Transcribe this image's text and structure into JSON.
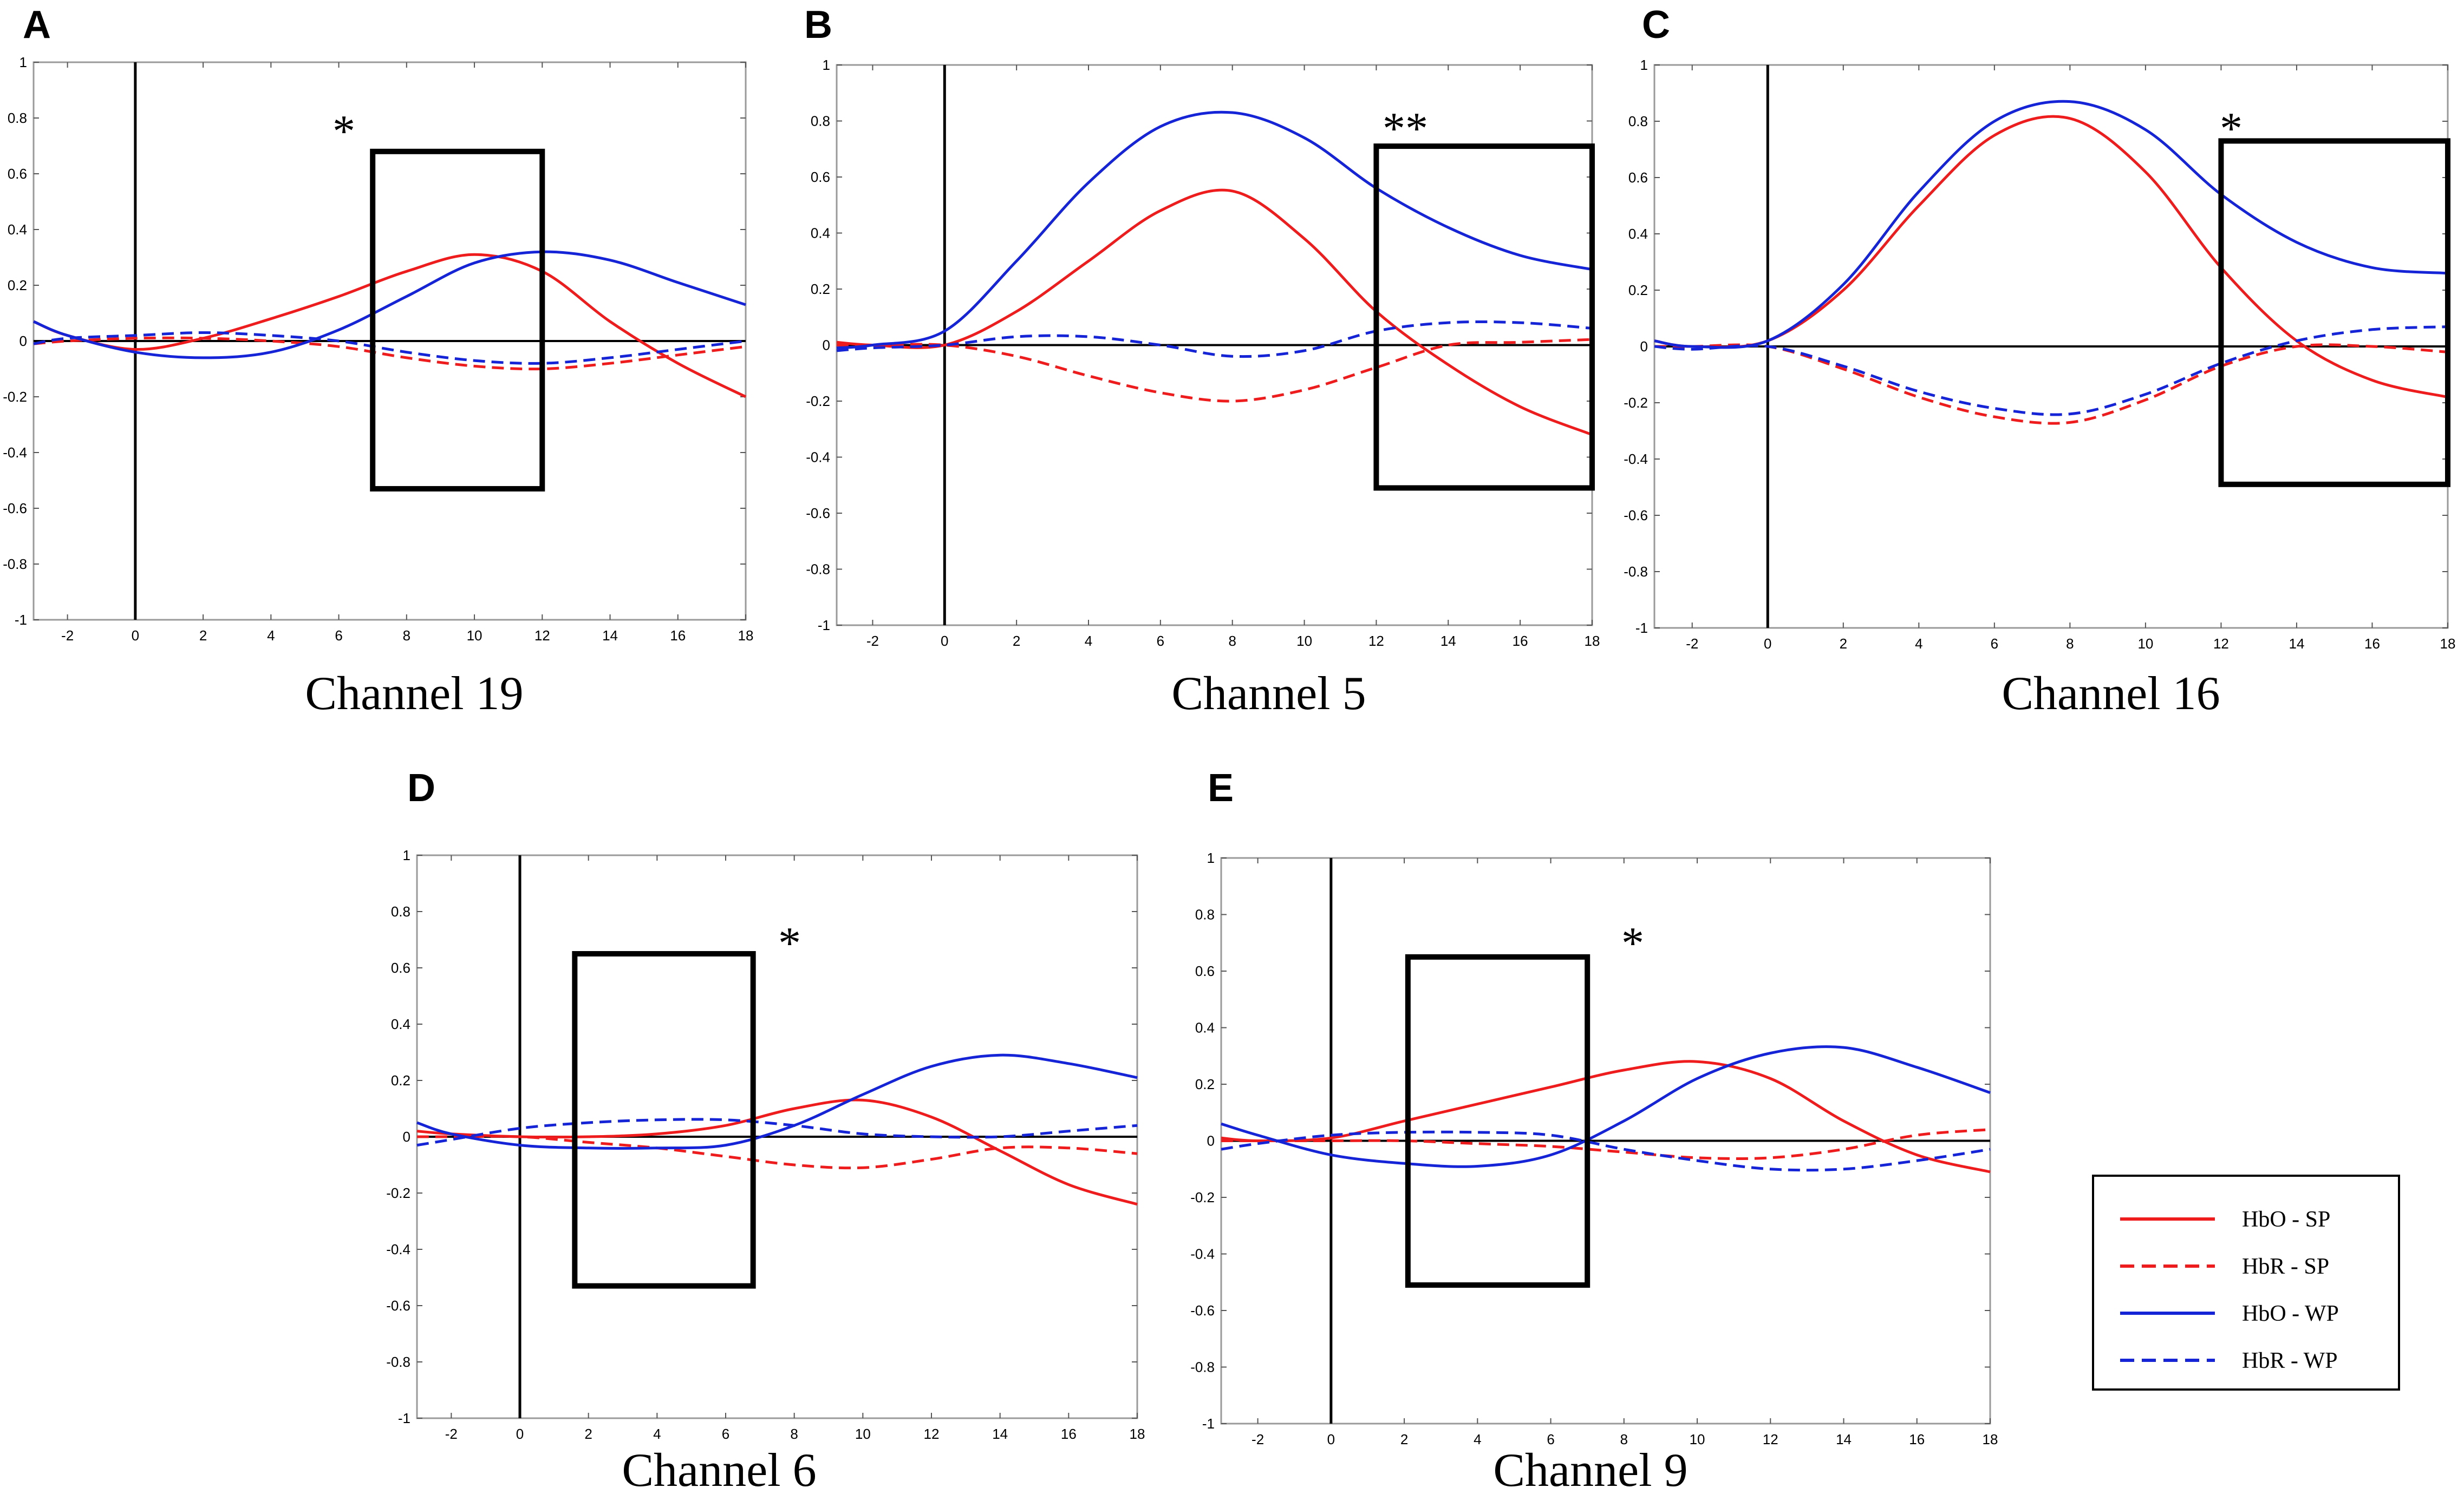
{
  "colors": {
    "red": "#ee1c1c",
    "blue": "#1424d6",
    "axis": "#000000"
  },
  "legend": [
    {
      "label": "HbO - SP",
      "color": "red",
      "dash": false
    },
    {
      "label": "HbR - SP",
      "color": "red",
      "dash": true
    },
    {
      "label": "HbO - WP",
      "color": "blue",
      "dash": false
    },
    {
      "label": "HbR - WP",
      "color": "blue",
      "dash": true
    }
  ],
  "chart_data": [
    {
      "panel": "A",
      "caption": "Channel 19",
      "type": "line",
      "significance": "*",
      "xlim": [
        -3,
        18
      ],
      "ylim": [
        -1,
        1
      ],
      "xticks": [
        -2,
        0,
        2,
        4,
        6,
        8,
        10,
        12,
        14,
        16,
        18
      ],
      "yticks": [
        -1,
        -0.8,
        -0.6,
        -0.4,
        -0.2,
        0,
        0.2,
        0.4,
        0.6,
        0.8,
        1
      ],
      "window": {
        "x": [
          7,
          12
        ],
        "y": [
          -0.53,
          0.68
        ]
      },
      "series": [
        {
          "name": "HbO - SP",
          "x": [
            -3,
            -2,
            0,
            2,
            4,
            6,
            8,
            10,
            12,
            14,
            16,
            18
          ],
          "y": [
            0.07,
            0.02,
            -0.03,
            0.01,
            0.08,
            0.16,
            0.25,
            0.31,
            0.25,
            0.07,
            -0.08,
            -0.2
          ]
        },
        {
          "name": "HbR - SP",
          "x": [
            -3,
            -2,
            0,
            2,
            4,
            6,
            8,
            10,
            12,
            14,
            16,
            18
          ],
          "y": [
            -0.01,
            0.0,
            0.01,
            0.01,
            0.0,
            -0.02,
            -0.06,
            -0.09,
            -0.1,
            -0.08,
            -0.05,
            -0.02
          ]
        },
        {
          "name": "HbO - WP",
          "x": [
            -3,
            -2,
            0,
            2,
            4,
            6,
            8,
            10,
            12,
            14,
            16,
            18
          ],
          "y": [
            0.07,
            0.02,
            -0.04,
            -0.06,
            -0.04,
            0.04,
            0.16,
            0.28,
            0.32,
            0.29,
            0.21,
            0.13
          ]
        },
        {
          "name": "HbR - WP",
          "x": [
            -3,
            -2,
            0,
            2,
            4,
            6,
            8,
            10,
            12,
            14,
            16,
            18
          ],
          "y": [
            -0.01,
            0.01,
            0.02,
            0.03,
            0.02,
            0.0,
            -0.04,
            -0.07,
            -0.08,
            -0.06,
            -0.03,
            0.0
          ]
        }
      ]
    },
    {
      "panel": "B",
      "caption": "Channel 5",
      "type": "line",
      "significance": "**",
      "xlim": [
        -3,
        18
      ],
      "ylim": [
        -1,
        1
      ],
      "xticks": [
        -2,
        0,
        2,
        4,
        6,
        8,
        10,
        12,
        14,
        16,
        18
      ],
      "yticks": [
        -1,
        -0.8,
        -0.6,
        -0.4,
        -0.2,
        0,
        0.2,
        0.4,
        0.6,
        0.8,
        1
      ],
      "window": {
        "x": [
          12,
          18
        ],
        "y": [
          -0.51,
          0.71
        ]
      },
      "series": [
        {
          "name": "HbO - SP",
          "x": [
            -3,
            -2,
            0,
            2,
            4,
            6,
            8,
            10,
            12,
            14,
            16,
            18
          ],
          "y": [
            0.01,
            0.0,
            0.0,
            0.12,
            0.3,
            0.48,
            0.55,
            0.38,
            0.12,
            -0.07,
            -0.22,
            -0.32
          ]
        },
        {
          "name": "HbR - SP",
          "x": [
            -3,
            -2,
            0,
            2,
            4,
            6,
            8,
            10,
            12,
            14,
            16,
            18
          ],
          "y": [
            0.0,
            0.0,
            0.0,
            -0.04,
            -0.11,
            -0.17,
            -0.2,
            -0.16,
            -0.08,
            0.0,
            0.01,
            0.02
          ]
        },
        {
          "name": "HbO - WP",
          "x": [
            -3,
            -2,
            0,
            2,
            4,
            6,
            8,
            10,
            12,
            14,
            16,
            18
          ],
          "y": [
            -0.01,
            0.0,
            0.05,
            0.3,
            0.58,
            0.78,
            0.83,
            0.74,
            0.56,
            0.42,
            0.32,
            0.27
          ]
        },
        {
          "name": "HbR - WP",
          "x": [
            -3,
            -2,
            0,
            2,
            4,
            6,
            8,
            10,
            12,
            14,
            16,
            18
          ],
          "y": [
            -0.02,
            -0.01,
            0.0,
            0.03,
            0.03,
            0.0,
            -0.04,
            -0.02,
            0.05,
            0.08,
            0.08,
            0.06
          ]
        }
      ]
    },
    {
      "panel": "C",
      "caption": "Channel 16",
      "type": "line",
      "significance": "*",
      "xlim": [
        -3,
        18
      ],
      "ylim": [
        -1,
        1
      ],
      "xticks": [
        -2,
        0,
        2,
        4,
        6,
        8,
        10,
        12,
        14,
        16,
        18
      ],
      "yticks": [
        -1,
        -0.8,
        -0.6,
        -0.4,
        -0.2,
        0,
        0.2,
        0.4,
        0.6,
        0.8,
        1
      ],
      "window": {
        "x": [
          12,
          18
        ],
        "y": [
          -0.49,
          0.73
        ]
      },
      "series": [
        {
          "name": "HbO - SP",
          "x": [
            -3,
            -2,
            0,
            2,
            4,
            6,
            8,
            10,
            12,
            14,
            16,
            18
          ],
          "y": [
            0.02,
            0.0,
            0.02,
            0.2,
            0.5,
            0.75,
            0.81,
            0.62,
            0.28,
            0.02,
            -0.12,
            -0.18
          ]
        },
        {
          "name": "HbR - SP",
          "x": [
            -3,
            -2,
            0,
            2,
            4,
            6,
            8,
            10,
            12,
            14,
            16,
            18
          ],
          "y": [
            0.0,
            0.0,
            0.0,
            -0.08,
            -0.18,
            -0.25,
            -0.27,
            -0.19,
            -0.07,
            0.0,
            0.0,
            -0.02
          ]
        },
        {
          "name": "HbO - WP",
          "x": [
            -3,
            -2,
            0,
            2,
            4,
            6,
            8,
            10,
            12,
            14,
            16,
            18
          ],
          "y": [
            0.02,
            0.0,
            0.02,
            0.22,
            0.55,
            0.8,
            0.87,
            0.77,
            0.54,
            0.37,
            0.28,
            0.26
          ]
        },
        {
          "name": "HbR - WP",
          "x": [
            -3,
            -2,
            0,
            2,
            4,
            6,
            8,
            10,
            12,
            14,
            16,
            18
          ],
          "y": [
            0.0,
            -0.01,
            0.0,
            -0.07,
            -0.16,
            -0.22,
            -0.24,
            -0.17,
            -0.06,
            0.02,
            0.06,
            0.07
          ]
        }
      ]
    },
    {
      "panel": "D",
      "caption": "Channel 6",
      "type": "line",
      "significance": "*",
      "xlim": [
        -3,
        18
      ],
      "ylim": [
        -1,
        1
      ],
      "xticks": [
        -2,
        0,
        2,
        4,
        6,
        8,
        10,
        12,
        14,
        16,
        18
      ],
      "yticks": [
        -1,
        -0.8,
        -0.6,
        -0.4,
        -0.2,
        0,
        0.2,
        0.4,
        0.6,
        0.8,
        1
      ],
      "window": {
        "x": [
          1.6,
          6.8
        ],
        "y": [
          -0.53,
          0.65
        ]
      },
      "series": [
        {
          "name": "HbO - SP",
          "x": [
            -3,
            -2,
            0,
            2,
            4,
            6,
            8,
            10,
            12,
            14,
            16,
            18
          ],
          "y": [
            0.02,
            0.01,
            0.0,
            0.0,
            0.01,
            0.04,
            0.1,
            0.13,
            0.07,
            -0.05,
            -0.17,
            -0.24
          ]
        },
        {
          "name": "HbR - SP",
          "x": [
            -3,
            -2,
            0,
            2,
            4,
            6,
            8,
            10,
            12,
            14,
            16,
            18
          ],
          "y": [
            0.0,
            0.0,
            0.0,
            -0.02,
            -0.04,
            -0.07,
            -0.1,
            -0.11,
            -0.08,
            -0.04,
            -0.04,
            -0.06
          ]
        },
        {
          "name": "HbO - WP",
          "x": [
            -3,
            -2,
            0,
            2,
            4,
            6,
            8,
            10,
            12,
            14,
            16,
            18
          ],
          "y": [
            0.05,
            0.01,
            -0.03,
            -0.04,
            -0.04,
            -0.03,
            0.04,
            0.15,
            0.25,
            0.29,
            0.26,
            0.21
          ]
        },
        {
          "name": "HbR - WP",
          "x": [
            -3,
            -2,
            0,
            2,
            4,
            6,
            8,
            10,
            12,
            14,
            16,
            18
          ],
          "y": [
            -0.03,
            -0.01,
            0.03,
            0.05,
            0.06,
            0.06,
            0.04,
            0.01,
            0.0,
            0.0,
            0.02,
            0.04
          ]
        }
      ]
    },
    {
      "panel": "E",
      "caption": "Channel 9",
      "type": "line",
      "significance": "*",
      "xlim": [
        -3,
        18
      ],
      "ylim": [
        -1,
        1
      ],
      "xticks": [
        -2,
        0,
        2,
        4,
        6,
        8,
        10,
        12,
        14,
        16,
        18
      ],
      "yticks": [
        -1,
        -0.8,
        -0.6,
        -0.4,
        -0.2,
        0,
        0.2,
        0.4,
        0.6,
        0.8,
        1
      ],
      "window": {
        "x": [
          2.1,
          7
        ],
        "y": [
          -0.51,
          0.65
        ]
      },
      "series": [
        {
          "name": "HbO - SP",
          "x": [
            -3,
            -2,
            0,
            2,
            4,
            6,
            8,
            10,
            12,
            14,
            16,
            18
          ],
          "y": [
            0.01,
            0.0,
            0.01,
            0.07,
            0.13,
            0.19,
            0.25,
            0.28,
            0.22,
            0.07,
            -0.05,
            -0.11
          ]
        },
        {
          "name": "HbR - SP",
          "x": [
            -3,
            -2,
            0,
            2,
            4,
            6,
            8,
            10,
            12,
            14,
            16,
            18
          ],
          "y": [
            0.0,
            0.0,
            0.0,
            0.0,
            -0.01,
            -0.02,
            -0.04,
            -0.06,
            -0.06,
            -0.03,
            0.02,
            0.04
          ]
        },
        {
          "name": "HbO - WP",
          "x": [
            -3,
            -2,
            0,
            2,
            4,
            6,
            8,
            10,
            12,
            14,
            16,
            18
          ],
          "y": [
            0.06,
            0.02,
            -0.05,
            -0.08,
            -0.09,
            -0.05,
            0.07,
            0.22,
            0.31,
            0.33,
            0.26,
            0.17
          ]
        },
        {
          "name": "HbR - WP",
          "x": [
            -3,
            -2,
            0,
            2,
            4,
            6,
            8,
            10,
            12,
            14,
            16,
            18
          ],
          "y": [
            -0.03,
            -0.01,
            0.02,
            0.03,
            0.03,
            0.02,
            -0.03,
            -0.07,
            -0.1,
            -0.1,
            -0.07,
            -0.03
          ]
        }
      ]
    }
  ]
}
